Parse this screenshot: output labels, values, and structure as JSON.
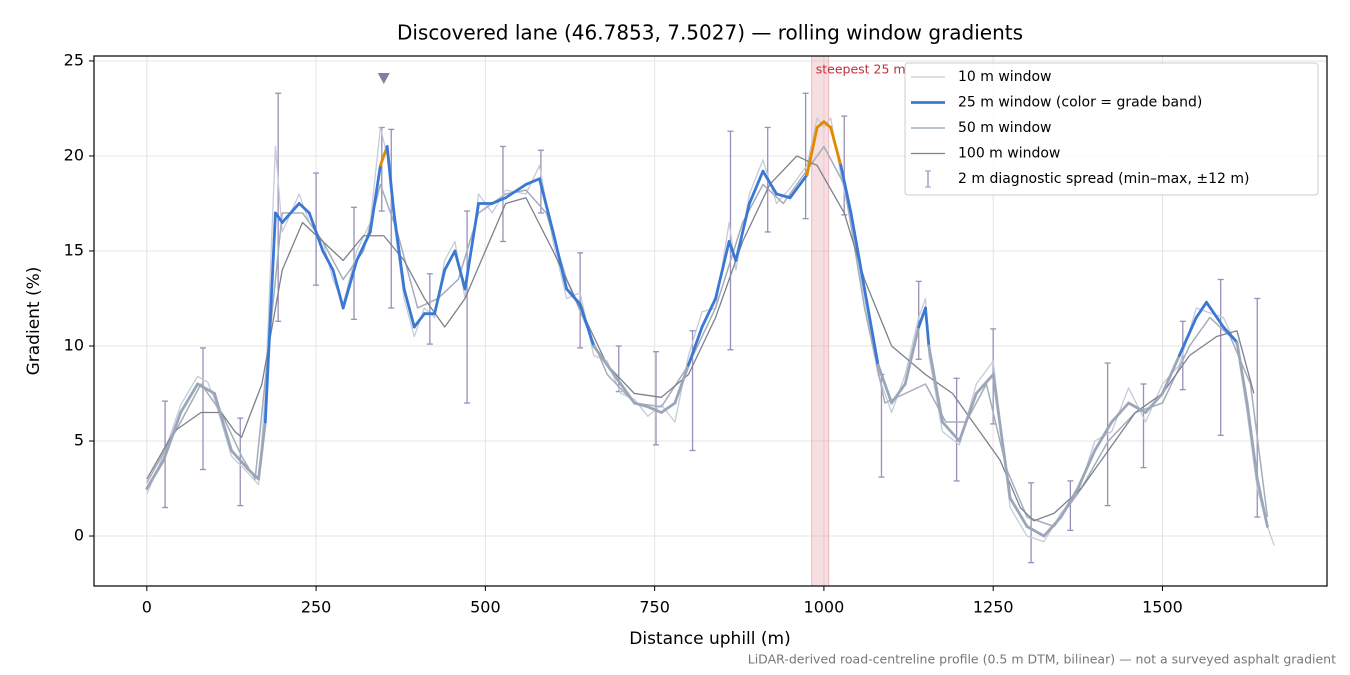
{
  "chart_data": {
    "type": "line",
    "title": "Discovered lane (46.7853, 7.5027) — rolling window gradients",
    "xlabel": "Distance uphill (m)",
    "ylabel": "Gradient (%)",
    "footnote": "LiDAR-derived road-centreline profile (0.5 m DTM, bilinear) — not a surveyed asphalt gradient",
    "xlim": [
      -78,
      1743
    ],
    "ylim": [
      -2.63,
      25.26
    ],
    "xticks": [
      0,
      250,
      500,
      750,
      1000,
      1250,
      1500
    ],
    "yticks": [
      0,
      5,
      10,
      15,
      20,
      25
    ],
    "grid": true,
    "legend": "upper right",
    "series": [
      {
        "name": "10 m window",
        "color": "#c5ccd8",
        "width": 1.3,
        "x": [
          0,
          25,
          50,
          75,
          90,
          100,
          125,
          150,
          165,
          175,
          190,
          200,
          225,
          240,
          260,
          275,
          290,
          310,
          330,
          345,
          355,
          365,
          380,
          395,
          410,
          425,
          440,
          455,
          470,
          490,
          510,
          530,
          560,
          580,
          600,
          620,
          640,
          660,
          680,
          700,
          720,
          740,
          760,
          780,
          800,
          820,
          840,
          860,
          870,
          890,
          910,
          930,
          950,
          975,
          990,
          1000,
          1010,
          1025,
          1040,
          1060,
          1080,
          1100,
          1120,
          1140,
          1150,
          1155,
          1175,
          1200,
          1225,
          1250,
          1275,
          1300,
          1325,
          1350,
          1375,
          1400,
          1425,
          1450,
          1475,
          1500,
          1525,
          1550,
          1565,
          1590,
          1610,
          1625,
          1640,
          1655,
          1665
        ],
        "values": [
          2.2,
          4.3,
          6.9,
          8.4,
          8.1,
          7.2,
          4.2,
          3.3,
          2.7,
          7.5,
          20.5,
          16.0,
          18.0,
          16.5,
          15.5,
          13.5,
          12.2,
          15.0,
          16.5,
          21.5,
          20.0,
          16.5,
          12.5,
          10.5,
          12.0,
          11.5,
          14.5,
          15.5,
          12.5,
          18.0,
          17.0,
          18.2,
          18.0,
          19.5,
          15.5,
          12.5,
          12.8,
          9.5,
          9.2,
          7.5,
          7.2,
          6.3,
          6.9,
          6.0,
          9.5,
          11.8,
          12.0,
          16.5,
          14.0,
          18.0,
          19.8,
          17.5,
          18.3,
          19.5,
          22.0,
          21.5,
          22.0,
          19.0,
          16.5,
          12.5,
          8.5,
          6.5,
          8.5,
          11.5,
          12.5,
          9.5,
          5.5,
          4.8,
          8.0,
          9.2,
          1.5,
          0.0,
          -0.3,
          1.2,
          2.2,
          5.0,
          5.5,
          7.8,
          6.0,
          8.0,
          9.0,
          12.0,
          11.8,
          11.5,
          10.0,
          6.5,
          2.5,
          0.5,
          -0.5
        ]
      },
      {
        "name": "25 m window (color = grade band)",
        "color": "#3a78d4",
        "width": 2.8,
        "band_edges": [
          10,
          20
        ],
        "band_colors": [
          "#9ba7b9",
          "#3a78d4",
          "#e08a00"
        ],
        "x": [
          0,
          25,
          50,
          75,
          100,
          125,
          150,
          165,
          175,
          190,
          200,
          225,
          240,
          260,
          275,
          290,
          310,
          330,
          345,
          355,
          365,
          380,
          395,
          410,
          425,
          440,
          455,
          470,
          490,
          510,
          530,
          560,
          580,
          600,
          620,
          640,
          660,
          680,
          700,
          720,
          740,
          760,
          780,
          800,
          820,
          840,
          860,
          870,
          890,
          910,
          930,
          950,
          975,
          990,
          1000,
          1010,
          1025,
          1040,
          1060,
          1080,
          1100,
          1120,
          1140,
          1150,
          1155,
          1175,
          1200,
          1225,
          1250,
          1275,
          1300,
          1325,
          1350,
          1375,
          1400,
          1425,
          1450,
          1475,
          1500,
          1525,
          1550,
          1565,
          1590,
          1610,
          1625,
          1640,
          1655
        ],
        "values": [
          2.5,
          4.0,
          6.5,
          8.0,
          7.5,
          4.5,
          3.5,
          3.0,
          6.0,
          17.0,
          16.5,
          17.5,
          17.0,
          15.0,
          14.0,
          12.0,
          14.5,
          16.0,
          19.5,
          20.5,
          17.0,
          13.0,
          11.0,
          11.7,
          11.7,
          14.0,
          15.0,
          13.0,
          17.5,
          17.5,
          17.8,
          18.5,
          18.8,
          16.0,
          13.0,
          12.2,
          10.0,
          9.0,
          8.0,
          7.0,
          6.8,
          6.5,
          7.0,
          9.0,
          11.0,
          12.5,
          15.5,
          14.5,
          17.5,
          19.2,
          18.0,
          17.8,
          19.0,
          21.5,
          21.8,
          21.5,
          19.5,
          17.0,
          13.0,
          9.0,
          7.0,
          8.0,
          11.0,
          12.0,
          10.0,
          6.0,
          5.0,
          7.5,
          8.5,
          2.0,
          0.5,
          0.0,
          1.0,
          2.5,
          4.5,
          6.0,
          7.0,
          6.5,
          7.5,
          9.5,
          11.5,
          12.3,
          11.0,
          10.2,
          7.0,
          3.0,
          0.5
        ]
      },
      {
        "name": "50 m window",
        "color": "#a3adbb",
        "width": 1.5,
        "x": [
          0,
          50,
          80,
          110,
          140,
          160,
          180,
          200,
          230,
          260,
          290,
          320,
          345,
          370,
          400,
          430,
          460,
          490,
          530,
          560,
          590,
          620,
          650,
          680,
          720,
          760,
          800,
          840,
          880,
          910,
          940,
          970,
          1000,
          1030,
          1060,
          1090,
          1120,
          1150,
          1180,
          1210,
          1240,
          1270,
          1300,
          1340,
          1380,
          1420,
          1460,
          1500,
          1540,
          1570,
          1600,
          1630,
          1655
        ],
        "values": [
          2.8,
          6.0,
          8.0,
          6.5,
          4.2,
          3.0,
          10.0,
          17.0,
          17.0,
          15.5,
          13.5,
          15.0,
          18.5,
          16.0,
          12.0,
          12.5,
          13.5,
          17.0,
          18.0,
          18.2,
          17.0,
          13.5,
          11.0,
          8.5,
          7.0,
          6.8,
          9.0,
          12.0,
          16.5,
          18.5,
          17.5,
          19.0,
          20.5,
          18.5,
          12.0,
          7.0,
          7.5,
          8.0,
          6.0,
          6.0,
          8.0,
          3.5,
          1.0,
          0.5,
          2.5,
          5.0,
          6.5,
          7.0,
          10.0,
          11.5,
          10.5,
          8.0,
          1.0
        ]
      },
      {
        "name": "100 m window",
        "color": "#7b818d",
        "width": 1.3,
        "x": [
          0,
          40,
          80,
          110,
          130,
          140,
          170,
          200,
          230,
          260,
          290,
          320,
          350,
          380,
          410,
          440,
          470,
          500,
          530,
          560,
          600,
          640,
          680,
          720,
          760,
          800,
          840,
          880,
          920,
          960,
          990,
          1030,
          1060,
          1100,
          1150,
          1190,
          1230,
          1260,
          1290,
          1310,
          1340,
          1380,
          1420,
          1460,
          1500,
          1540,
          1580,
          1610,
          1635
        ],
        "values": [
          3.0,
          5.5,
          6.5,
          6.5,
          5.5,
          5.2,
          8.0,
          14.0,
          16.5,
          15.5,
          14.5,
          15.8,
          15.8,
          14.5,
          12.5,
          11.0,
          12.5,
          15.0,
          17.5,
          17.8,
          15.0,
          12.0,
          9.0,
          7.5,
          7.3,
          8.5,
          11.5,
          15.5,
          18.5,
          20.0,
          19.5,
          17.0,
          13.5,
          10.0,
          8.5,
          7.5,
          5.5,
          4.0,
          1.5,
          0.8,
          1.2,
          2.5,
          4.5,
          6.5,
          7.5,
          9.5,
          10.5,
          10.8,
          7.5
        ]
      }
    ],
    "errorbars": {
      "name": "2 m diagnostic spread (min–max, ±12 m)",
      "color": "#9a8fb8",
      "x": [
        27,
        83,
        138,
        194,
        250,
        306,
        347,
        361,
        418,
        473,
        526,
        582,
        640,
        697,
        752,
        806,
        862,
        917,
        973,
        1030,
        1085,
        1140,
        1196,
        1250,
        1306,
        1364,
        1419,
        1472,
        1530,
        1586,
        1640
      ],
      "low": [
        1.5,
        3.5,
        1.6,
        11.3,
        13.2,
        11.4,
        17.1,
        12.0,
        10.1,
        7.0,
        15.5,
        17.0,
        9.9,
        7.6,
        4.8,
        4.5,
        9.8,
        16.0,
        16.7,
        16.9,
        3.1,
        9.3,
        2.9,
        5.9,
        -1.4,
        0.3,
        1.6,
        3.6,
        7.7,
        5.3,
        1.0
      ],
      "high": [
        7.1,
        9.9,
        6.2,
        23.3,
        19.1,
        17.3,
        21.5,
        21.4,
        13.8,
        17.1,
        20.5,
        20.3,
        14.9,
        10.0,
        9.7,
        10.8,
        21.3,
        21.5,
        23.3,
        22.1,
        8.5,
        13.4,
        8.3,
        10.9,
        2.8,
        2.9,
        9.1,
        8.0,
        11.3,
        13.5,
        12.5
      ]
    },
    "span": {
      "x0": 982,
      "x1": 1007,
      "color": "#e8a0a8",
      "label": "steepest 25 m"
    },
    "marker": {
      "x": 350,
      "y": 24.1,
      "color": "#8a7aa8"
    }
  }
}
